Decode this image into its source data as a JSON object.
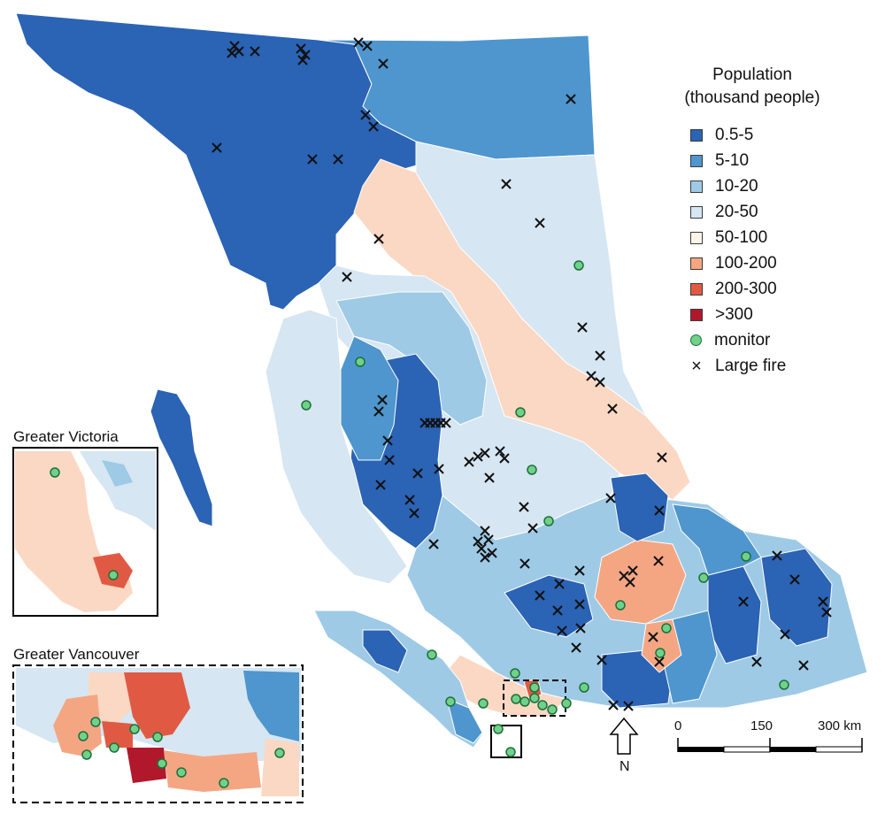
{
  "legend": {
    "title_line1": "Population",
    "title_line2": "(thousand people)",
    "items": [
      {
        "label": "0.5-5",
        "color": "#2b63b5"
      },
      {
        "label": "5-10",
        "color": "#4e96cd"
      },
      {
        "label": "10-20",
        "color": "#9ecae6"
      },
      {
        "label": "20-50",
        "color": "#d6e6f2"
      },
      {
        "label": "50-100",
        "color": "#fdf5e9"
      },
      {
        "label": "100-200",
        "color": "#f4a683"
      },
      {
        "label": "200-300",
        "color": "#e05a43"
      },
      {
        "label": ">300",
        "color": "#b2182b"
      }
    ],
    "monitor_label": "monitor",
    "monitor_color": "#6fd18a",
    "fire_label": "Large fire"
  },
  "insets": {
    "victoria_label": "Greater Victoria",
    "vancouver_label": "Greater Vancouver"
  },
  "scale": {
    "tick0": "0",
    "tick1": "150",
    "tick2": "300 km"
  },
  "north": {
    "label": "N"
  }
}
